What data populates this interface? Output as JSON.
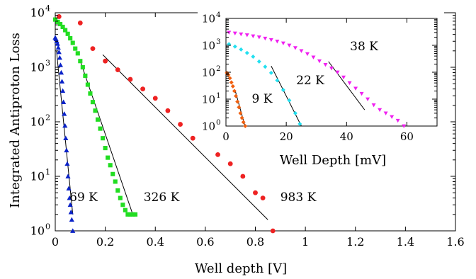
{
  "chart_data": [
    {
      "type": "scatter",
      "title": "",
      "xlabel": "Well depth [V]",
      "ylabel": "Integrated Antiproton Loss",
      "xlim": [
        0,
        1.6
      ],
      "ylim": [
        1,
        10000
      ],
      "yscale": "log",
      "xticks": [
        "0",
        "0.2",
        "0.4",
        "0.6",
        "0.8",
        "1",
        "1.2",
        "1.4",
        "1.6"
      ],
      "yticks": [
        {
          "mantissa": "10",
          "exp": "0"
        },
        {
          "mantissa": "10",
          "exp": "1"
        },
        {
          "mantissa": "10",
          "exp": "2"
        },
        {
          "mantissa": "10",
          "exp": "3"
        },
        {
          "mantissa": "10",
          "exp": "4"
        }
      ],
      "grid": false,
      "legend": "none",
      "series": [
        {
          "label": "69 K",
          "color": "#0a22c8",
          "marker": "triangle",
          "x": [
            0.0,
            0.003,
            0.006,
            0.009,
            0.012,
            0.015,
            0.018,
            0.021,
            0.024,
            0.027,
            0.03,
            0.033,
            0.036,
            0.039,
            0.042,
            0.045,
            0.048,
            0.051,
            0.054,
            0.057,
            0.06,
            0.063,
            0.066,
            0.07
          ],
          "y": [
            3500,
            3300,
            3000,
            2700,
            2300,
            1900,
            1500,
            1100,
            800,
            550,
            370,
            230,
            140,
            85,
            50,
            30,
            17,
            10,
            6,
            4,
            3,
            2.2,
            1.6,
            1
          ],
          "fit": {
            "x": [
              0.005,
              0.07
            ],
            "y": [
              2000,
              2
            ]
          }
        },
        {
          "label": "326 K",
          "color": "#22dd22",
          "marker": "square",
          "x": [
            0.0,
            0.01,
            0.02,
            0.03,
            0.04,
            0.05,
            0.06,
            0.07,
            0.08,
            0.09,
            0.1,
            0.11,
            0.12,
            0.13,
            0.14,
            0.15,
            0.16,
            0.17,
            0.18,
            0.19,
            0.2,
            0.21,
            0.22,
            0.23,
            0.24,
            0.25,
            0.26,
            0.27,
            0.28,
            0.29,
            0.3,
            0.31,
            0.32
          ],
          "y": [
            7500,
            6800,
            6200,
            5500,
            4800,
            4100,
            3400,
            2800,
            2200,
            1800,
            1300,
            1000,
            700,
            480,
            330,
            230,
            160,
            110,
            75,
            50,
            33,
            22,
            16,
            11,
            8,
            5.5,
            4,
            3,
            2.4,
            2,
            2,
            2,
            2
          ],
          "fit": {
            "x": [
              0.1,
              0.31
            ],
            "y": [
              1300,
              2
            ]
          }
        },
        {
          "label": "983 K",
          "color": "#ee2222",
          "marker": "circle",
          "x": [
            0.015,
            0.1,
            0.15,
            0.2,
            0.25,
            0.3,
            0.35,
            0.4,
            0.45,
            0.5,
            0.55,
            0.6,
            0.65,
            0.7,
            0.75,
            0.8,
            0.83,
            0.87
          ],
          "y": [
            8500,
            6500,
            2200,
            1300,
            900,
            600,
            400,
            270,
            160,
            90,
            50,
            40,
            25,
            17,
            10,
            5,
            4,
            1
          ],
          "fit": {
            "x": [
              0.19,
              0.85
            ],
            "y": [
              1700,
              1.6
            ]
          }
        }
      ]
    },
    {
      "type": "scatter",
      "title": "",
      "xlabel": "Well Depth [mV]",
      "ylabel": "",
      "xlim": [
        0,
        70
      ],
      "ylim": [
        1,
        10000
      ],
      "yscale": "log",
      "xticks": [
        "0",
        "20",
        "40",
        "60"
      ],
      "yticks": [
        {
          "mantissa": "10",
          "exp": "0"
        },
        {
          "mantissa": "10",
          "exp": "1"
        },
        {
          "mantissa": "10",
          "exp": "2"
        },
        {
          "mantissa": "10",
          "exp": "3"
        },
        {
          "mantissa": "10",
          "exp": "4"
        }
      ],
      "grid": false,
      "legend": "none",
      "series": [
        {
          "label": "9 K",
          "color": "#f06010",
          "marker": "diamond",
          "x": [
            0.3,
            0.8,
            1.3,
            1.8,
            2.3,
            2.8,
            3.3,
            3.8,
            4.3,
            4.8,
            5.3,
            5.8,
            6.4
          ],
          "y": [
            95,
            80,
            60,
            42,
            30,
            20,
            13,
            8,
            5,
            3,
            2,
            1.4,
            1
          ],
          "fit": {
            "x": [
              3.0,
              6.3
            ],
            "y": [
              22,
              1
            ]
          }
        },
        {
          "label": "22 K",
          "color": "#22e0f0",
          "marker": "diamond",
          "x": [
            1,
            3,
            5,
            7,
            9,
            11,
            13,
            15,
            17,
            19,
            21,
            23,
            24.5
          ],
          "y": [
            1100,
            900,
            700,
            520,
            380,
            250,
            160,
            95,
            50,
            22,
            9,
            3,
            1.2
          ],
          "fit": {
            "x": [
              15,
              25
            ],
            "y": [
              170,
              1
            ]
          }
        },
        {
          "label": "38 K",
          "color": "#f020f0",
          "marker": "triangle-down",
          "x": [
            1,
            3,
            5,
            7,
            9,
            11,
            13,
            15,
            17,
            19,
            21,
            23,
            25,
            27,
            29,
            31,
            33,
            35,
            37,
            39,
            41,
            43,
            45,
            47,
            49,
            51,
            53,
            55,
            57,
            59
          ],
          "y": [
            3000,
            2800,
            2600,
            2400,
            2200,
            2000,
            1800,
            1600,
            1400,
            1200,
            1000,
            800,
            620,
            480,
            360,
            260,
            190,
            140,
            100,
            65,
            40,
            25,
            16,
            10,
            6,
            4,
            3,
            2.2,
            1.6,
            1
          ],
          "fit": {
            "x": [
              34,
              46
            ],
            "y": [
              250,
              4
            ]
          }
        }
      ]
    }
  ]
}
